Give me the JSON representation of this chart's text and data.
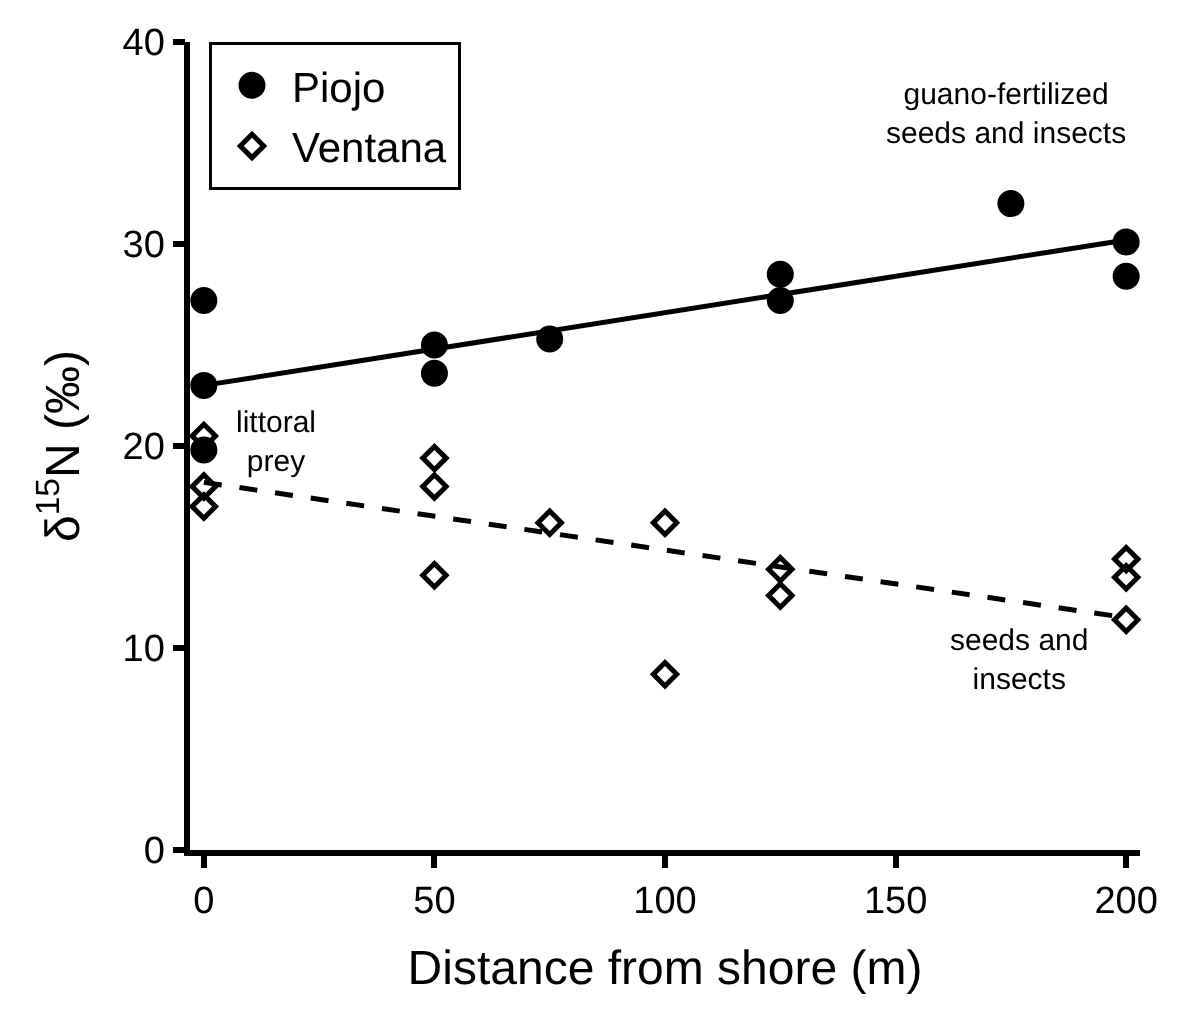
{
  "chart_data": {
    "type": "scatter",
    "xlabel": "Distance from shore (m)",
    "ylabel": "δ$^{15}$N (‰)",
    "xlim": [
      -3,
      203
    ],
    "xticks": [
      0,
      50,
      100,
      150,
      200
    ],
    "ylim": [
      0,
      40
    ],
    "yticks": [
      0,
      10,
      20,
      30,
      40
    ],
    "legend": "top left",
    "series": [
      {
        "name": "Piojo",
        "color": "#000000",
        "marker": "circle",
        "x": [
          0,
          0,
          0,
          50,
          50,
          75,
          125,
          125,
          175,
          200,
          200
        ],
        "values": [
          27.2,
          23.0,
          19.8,
          25.0,
          23.6,
          25.3,
          28.5,
          27.2,
          32.0,
          30.1,
          28.4
        ]
      },
      {
        "name": "Ventana",
        "color": "#000000",
        "marker": "diamond",
        "x": [
          0,
          0,
          0,
          50,
          50,
          50,
          75,
          100,
          100,
          125,
          125,
          200,
          200,
          200
        ],
        "values": [
          20.5,
          18.0,
          17.0,
          19.4,
          18.0,
          13.6,
          16.2,
          16.2,
          8.7,
          13.9,
          12.6,
          14.4,
          13.5,
          11.4
        ]
      },
      {
        "type": "line",
        "color": "#000000",
        "marker": "none",
        "line_style": "solid",
        "x": [
          0,
          200
        ],
        "values": [
          23.0,
          30.2
        ]
      },
      {
        "type": "line",
        "color": "#000000",
        "marker": "none",
        "line_style": "dashed",
        "x": [
          0,
          200
        ],
        "values": [
          18.2,
          11.5
        ]
      }
    ],
    "annotations": [
      "littoral\nprey",
      "guano-fertilized\nseeds and insects",
      "seeds and\ninsects"
    ]
  }
}
